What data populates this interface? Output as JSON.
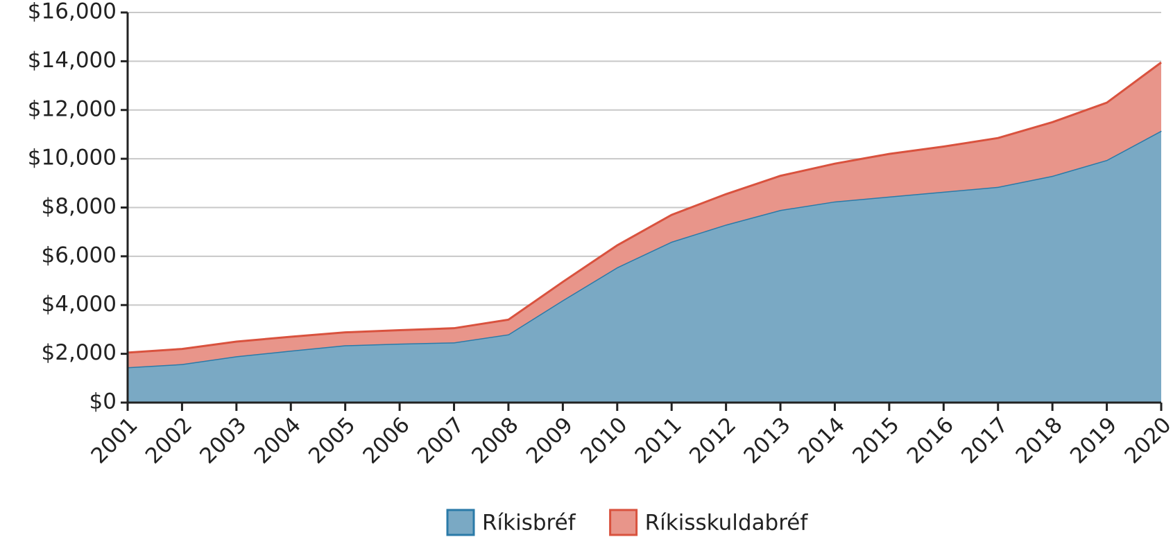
{
  "chart_data": {
    "type": "stacked_area",
    "categories": [
      "2001",
      "2002",
      "2003",
      "2004",
      "2005",
      "2006",
      "2007",
      "2008",
      "2009",
      "2010",
      "2011",
      "2012",
      "2013",
      "2014",
      "2015",
      "2016",
      "2017",
      "2018",
      "2019",
      "2020"
    ],
    "series": [
      {
        "name": "Ríkisbréf",
        "color": "#7aa9c4",
        "line_color": "#2a7aa8",
        "values": [
          1450,
          1580,
          1900,
          2130,
          2350,
          2420,
          2470,
          2800,
          4200,
          5550,
          6600,
          7300,
          7900,
          8250,
          8450,
          8650,
          8850,
          9300,
          9950,
          11150
        ]
      },
      {
        "name": "Ríkisskuldabréf",
        "color": "#e8958a",
        "line_color": "#d9523e",
        "values": [
          600,
          620,
          600,
          570,
          530,
          550,
          580,
          600,
          750,
          900,
          1100,
          1250,
          1400,
          1550,
          1750,
          1850,
          2000,
          2200,
          2350,
          2800
        ]
      }
    ],
    "ylim": [
      0,
      16000
    ],
    "yticks": [
      {
        "value": 0,
        "label": "$0"
      },
      {
        "value": 2000,
        "label": "$2,000"
      },
      {
        "value": 4000,
        "label": "$4,000"
      },
      {
        "value": 6000,
        "label": "$6,000"
      },
      {
        "value": 8000,
        "label": "$8,000"
      },
      {
        "value": 10000,
        "label": "$10,000"
      },
      {
        "value": 12000,
        "label": "$12,000"
      },
      {
        "value": 14000,
        "label": "$14,000"
      },
      {
        "value": 16000,
        "label": "$16,000"
      }
    ],
    "grid": true,
    "legend": "bottom"
  }
}
